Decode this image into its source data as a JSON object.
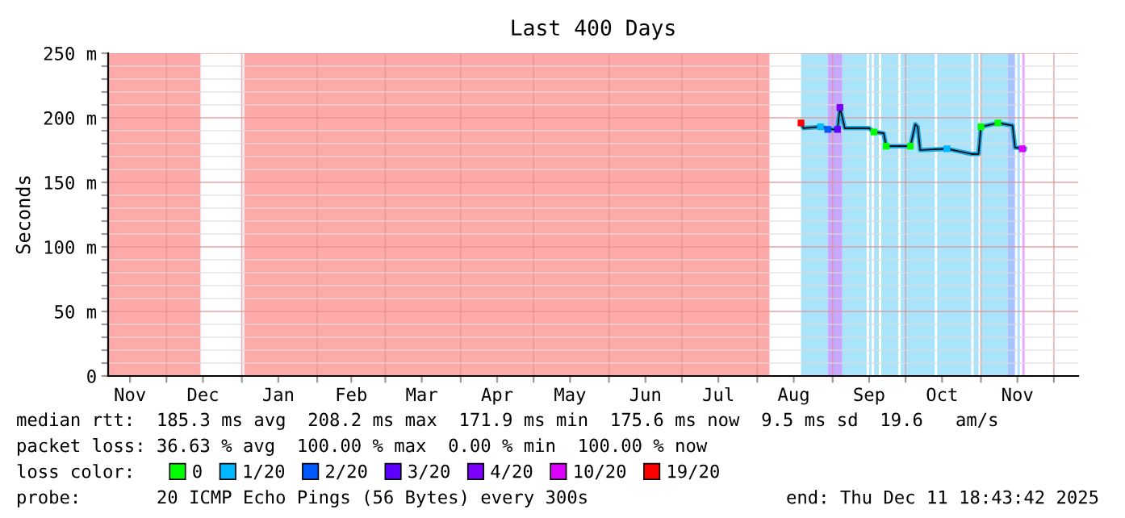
{
  "chart_data": {
    "type": "line",
    "title": "Last 400 Days",
    "ylabel": "Seconds",
    "xlim": [
      "2024-11-07",
      "2025-12-11"
    ],
    "xticks": [
      {
        "value": "2024-11-16",
        "label": "Nov"
      },
      {
        "value": "2024-12-01",
        "label": null
      },
      {
        "value": "2024-12-16",
        "label": "Dec"
      },
      {
        "value": "2025-01-01",
        "label": null
      },
      {
        "value": "2025-01-16",
        "label": "Jan"
      },
      {
        "value": "2025-02-01",
        "label": null
      },
      {
        "value": "2025-02-15",
        "label": "Feb"
      },
      {
        "value": "2025-03-01",
        "label": null
      },
      {
        "value": "2025-03-16",
        "label": "Mar"
      },
      {
        "value": "2025-04-01",
        "label": null
      },
      {
        "value": "2025-04-16",
        "label": "Apr"
      },
      {
        "value": "2025-05-01",
        "label": null
      },
      {
        "value": "2025-05-16",
        "label": "May"
      },
      {
        "value": "2025-06-01",
        "label": null
      },
      {
        "value": "2025-06-16",
        "label": "Jun"
      },
      {
        "value": "2025-07-01",
        "label": null
      },
      {
        "value": "2025-07-16",
        "label": "Jul"
      },
      {
        "value": "2025-08-01",
        "label": null
      },
      {
        "value": "2025-08-16",
        "label": "Aug"
      },
      {
        "value": "2025-09-01",
        "label": null
      },
      {
        "value": "2025-09-16",
        "label": "Sep"
      },
      {
        "value": "2025-10-01",
        "label": null
      },
      {
        "value": "2025-10-16",
        "label": "Oct"
      },
      {
        "value": "2025-11-01",
        "label": null
      },
      {
        "value": "2025-11-16",
        "label": "Nov"
      },
      {
        "value": "2025-12-01",
        "label": null
      }
    ],
    "ylim": [
      0,
      250
    ],
    "yticks": [
      0,
      {
        "value": 10,
        "label": null
      },
      {
        "value": 20,
        "label": null
      },
      {
        "value": 30,
        "label": null
      },
      {
        "value": 40,
        "label": null
      },
      {
        "value": 50,
        "label": "50 m"
      },
      {
        "value": 60,
        "label": null
      },
      {
        "value": 70,
        "label": null
      },
      {
        "value": 80,
        "label": null
      },
      {
        "value": 90,
        "label": null
      },
      {
        "value": 100,
        "label": "100 m"
      },
      {
        "value": 110,
        "label": null
      },
      {
        "value": 120,
        "label": null
      },
      {
        "value": 130,
        "label": null
      },
      {
        "value": 140,
        "label": null
      },
      {
        "value": 150,
        "label": "150 m"
      },
      {
        "value": 160,
        "label": null
      },
      {
        "value": 170,
        "label": null
      },
      {
        "value": 180,
        "label": null
      },
      {
        "value": 190,
        "label": null
      },
      {
        "value": 200,
        "label": "200 m"
      },
      {
        "value": 210,
        "label": null
      },
      {
        "value": 220,
        "label": null
      },
      {
        "value": 230,
        "label": null
      },
      {
        "value": 240,
        "label": null
      },
      {
        "value": 250,
        "label": "250 m"
      }
    ],
    "grid": true,
    "line_style": "solid",
    "legend": "bottom",
    "legend_title": "loss color:",
    "bands": [
      {
        "axis": "x",
        "from": "2024-11-07",
        "to": "2024-12-15",
        "color": "#ffaaaa"
      },
      {
        "axis": "x",
        "from": "2025-01-02",
        "to": "2025-08-06",
        "color": "#ffaaaa"
      },
      {
        "axis": "x",
        "from": "2025-08-19",
        "to": "2025-08-30",
        "color": "#aae4fa"
      },
      {
        "axis": "x",
        "from": "2025-08-30",
        "to": "2025-09-05",
        "color": "#c8a8ff"
      },
      {
        "axis": "x",
        "from": "2025-09-05",
        "to": "2025-09-15",
        "color": "#aae4fa"
      },
      {
        "axis": "x",
        "from": "2025-09-16",
        "to": "2025-09-17",
        "color": "#aae4fa"
      },
      {
        "axis": "x",
        "from": "2025-09-18",
        "to": "2025-09-20",
        "color": "#aae4fa"
      },
      {
        "axis": "x",
        "from": "2025-09-21",
        "to": "2025-09-28",
        "color": "#aae4fa"
      },
      {
        "axis": "x",
        "from": "2025-09-29",
        "to": "2025-10-13",
        "color": "#aae4fa"
      },
      {
        "axis": "x",
        "from": "2025-10-14",
        "to": "2025-10-28",
        "color": "#aae4fa"
      },
      {
        "axis": "x",
        "from": "2025-10-29",
        "to": "2025-10-31",
        "color": "#aae4fa"
      },
      {
        "axis": "x",
        "from": "2025-11-01",
        "to": "2025-11-12",
        "color": "#aae4fa"
      },
      {
        "axis": "x",
        "from": "2025-11-12",
        "to": "2025-11-15",
        "color": "#a8c4ff"
      },
      {
        "axis": "x",
        "from": "2025-11-16",
        "to": "2025-11-17",
        "color": "#aae4fa"
      },
      {
        "axis": "x",
        "from": "2025-11-18",
        "to": "2025-11-19",
        "color": "#e8a8ff"
      }
    ],
    "series": [
      {
        "color": "#1aa6e0",
        "x": [
          "2025-08-19",
          "2025-08-20",
          "2025-08-27",
          "2025-09-01",
          "2025-09-03",
          "2025-09-04",
          "2025-09-05",
          "2025-09-06",
          "2025-09-16",
          "2025-09-18",
          "2025-09-22",
          "2025-09-23",
          "2025-10-03",
          "2025-10-05",
          "2025-10-06",
          "2025-10-07",
          "2025-10-18",
          "2025-10-28",
          "2025-10-31",
          "2025-11-01",
          "2025-11-08",
          "2025-11-14",
          "2025-11-15",
          "2025-11-19"
        ],
        "values": [
          196,
          192,
          193,
          191,
          191,
          208,
          200,
          192,
          192,
          189,
          188,
          178,
          178,
          195,
          193,
          175,
          176,
          172,
          172,
          193,
          196,
          194,
          177,
          176
        ]
      },
      {
        "name": "0",
        "color": "#00ff00",
        "type": "scatter",
        "marker": "square",
        "x": [
          "2025-09-18",
          "2025-09-23",
          "2025-10-03",
          "2025-11-01",
          "2025-11-08"
        ],
        "values": [
          189,
          178,
          178,
          193,
          196
        ]
      },
      {
        "name": "1/20",
        "color": "#00b8ff",
        "type": "scatter",
        "marker": "square",
        "x": [
          "2025-08-27",
          "2025-10-18"
        ],
        "values": [
          193,
          176
        ]
      },
      {
        "name": "2/20",
        "color": "#0059ff",
        "type": "scatter",
        "marker": "square",
        "x": [
          "2025-08-30"
        ],
        "values": [
          191
        ]
      },
      {
        "name": "3/20",
        "color": "#5e00ff",
        "type": "scatter",
        "marker": "square",
        "x": [
          "2025-09-03"
        ],
        "values": [
          191
        ]
      },
      {
        "name": "4/20",
        "color": "#7e00ff",
        "type": "scatter",
        "marker": "square",
        "x": [
          "2025-09-04"
        ],
        "values": [
          208
        ]
      },
      {
        "name": "10/20",
        "color": "#dd00ff",
        "type": "scatter",
        "marker": "square",
        "x": [
          "2025-11-18"
        ],
        "values": [
          176
        ]
      },
      {
        "name": "19/20",
        "color": "#ff0000",
        "type": "scatter",
        "marker": "square",
        "x": [
          "2025-08-19"
        ],
        "values": [
          196
        ]
      }
    ],
    "annotations": [
      "median rtt:  185.3 ms avg  208.2 ms max  171.9 ms min  175.6 ms now  9.5 ms sd  19.6   am/s",
      "packet loss: 36.63 % avg  100.00 % max  0.00 % min  100.00 % now",
      "probe:       20 ICMP Echo Pings (56 Bytes) every 300s",
      "end: Thu Dec 11 18:43:42 2025"
    ]
  }
}
